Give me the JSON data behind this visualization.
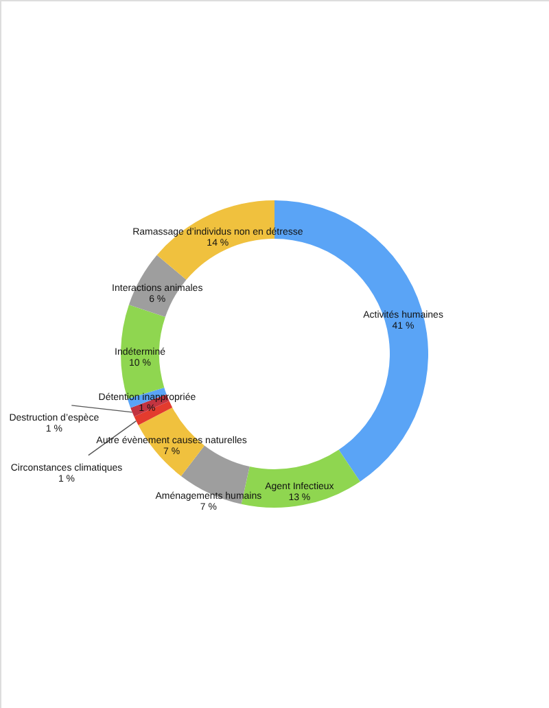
{
  "chart_data": {
    "type": "donut",
    "categories": [
      "Activités humaines",
      "Agent Infectieux",
      "Aménagements humains",
      "Autre évènement causes naturelles",
      "Circonstances climatiques",
      "Destruction d’espèce",
      "Détention inappropriée",
      "Indéterminé",
      "Interactions animales",
      "Ramassage d’individus non en détresse"
    ],
    "values": [
      41,
      13,
      7,
      7,
      1,
      1,
      1,
      10,
      6,
      14
    ],
    "colors": [
      "#5aa4f6",
      "#8fd650",
      "#9e9e9e",
      "#f0c13e",
      "#e33b2e",
      "#c23440",
      "#5aa4f6",
      "#8fd650",
      "#9e9e9e",
      "#f0c13e"
    ],
    "value_labels": [
      "41 %",
      "13 %",
      "7 %",
      "7 %",
      "1 %",
      "1 %",
      "1 %",
      "10 %",
      "6 %",
      "14 %"
    ]
  }
}
